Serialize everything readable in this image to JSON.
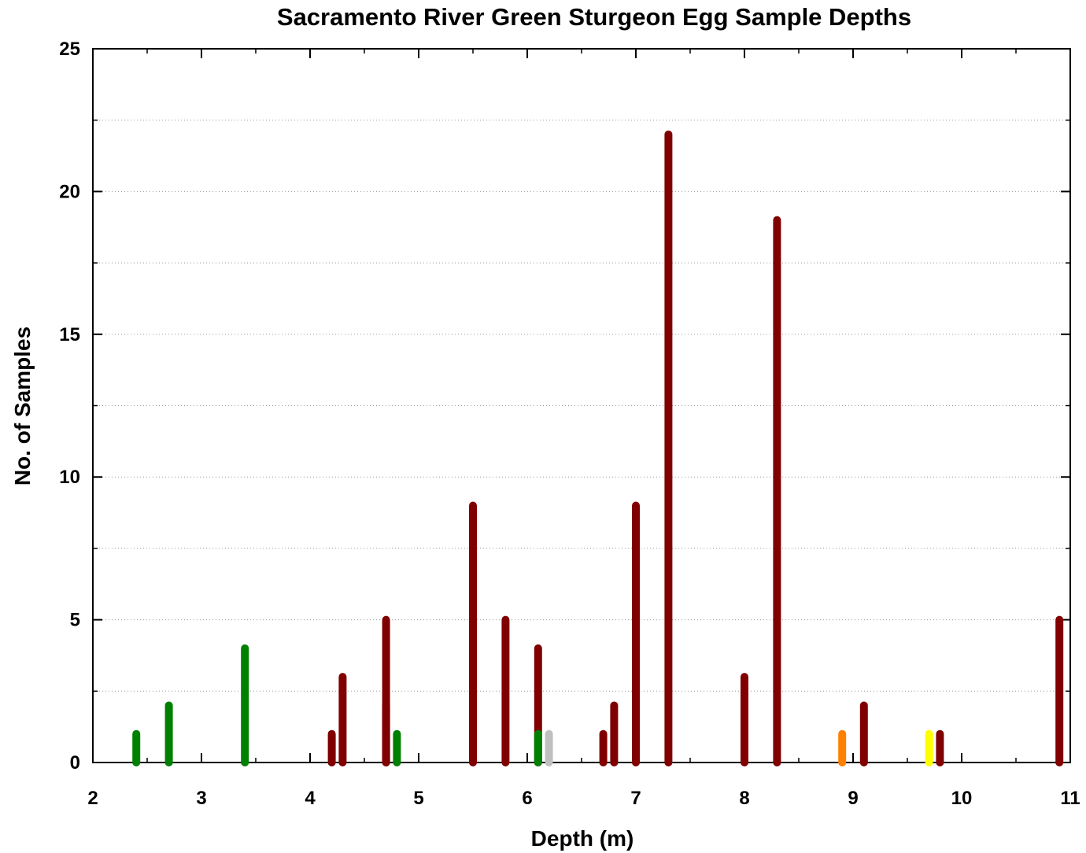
{
  "chart_data": {
    "type": "stem",
    "title": "Sacramento River Green Sturgeon Egg Sample Depths",
    "x_label": "Depth (m)",
    "y_label": "No. of Samples",
    "x": [
      2.4,
      2.7,
      3.4,
      4.2,
      4.3,
      4.7,
      4.7,
      4.8,
      5.5,
      5.8,
      6.1,
      6.1,
      6.2,
      6.7,
      6.8,
      7.0,
      7.3,
      8.0,
      8.3,
      8.9,
      9.1,
      9.7,
      9.8,
      10.9
    ],
    "values": [
      1,
      2,
      4,
      1,
      3,
      5,
      2,
      1,
      9,
      5,
      4,
      1,
      1,
      1,
      2,
      9,
      22,
      3,
      19,
      1,
      2,
      1,
      1,
      5
    ],
    "colors": [
      "#008000",
      "#008000",
      "#008000",
      "#800000",
      "#800000",
      "#800000",
      "#800000",
      "#008000",
      "#800000",
      "#800000",
      "#800000",
      "#008000",
      "#c0c0c0",
      "#800000",
      "#800000",
      "#800000",
      "#800000",
      "#800000",
      "#800000",
      "#ff8000",
      "#800000",
      "#ffff00",
      "#800000",
      "#800000"
    ],
    "xlim": [
      2,
      11
    ],
    "xticks": [
      2,
      3,
      4,
      5,
      6,
      7,
      8,
      9,
      10,
      11
    ],
    "ylim": [
      0,
      25
    ],
    "yticks": [
      0,
      5,
      10,
      15,
      20,
      25
    ],
    "grid": true
  }
}
